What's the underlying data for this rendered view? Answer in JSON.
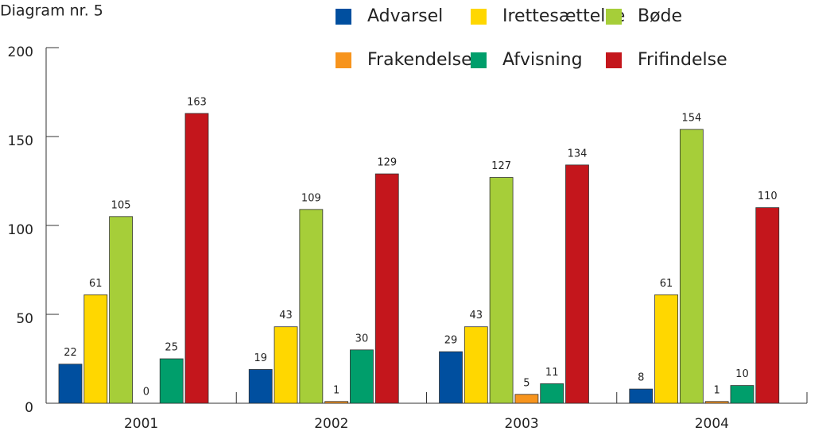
{
  "chart_data": {
    "type": "bar",
    "title": "Diagram nr. 5",
    "categories": [
      "2001",
      "2002",
      "2003",
      "2004"
    ],
    "series": [
      {
        "name": "Advarsel",
        "color": "#004f9f",
        "values": [
          22,
          19,
          29,
          8
        ]
      },
      {
        "name": "Irettesættelse",
        "color": "#ffd700",
        "values": [
          61,
          43,
          43,
          61
        ]
      },
      {
        "name": "Bøde",
        "color": "#a6ce39",
        "values": [
          105,
          109,
          127,
          154
        ]
      },
      {
        "name": "Frakendelse",
        "color": "#f7941d",
        "values": [
          0,
          1,
          5,
          1
        ]
      },
      {
        "name": "Afvisning",
        "color": "#009e6b",
        "values": [
          25,
          30,
          11,
          10
        ]
      },
      {
        "name": "Frifindelse",
        "color": "#c4161c",
        "values": [
          163,
          129,
          134,
          110
        ]
      }
    ],
    "ylim": [
      0,
      200
    ],
    "yticks": [
      0,
      50,
      100,
      150,
      200
    ],
    "grid": false,
    "legend": "top-right"
  }
}
